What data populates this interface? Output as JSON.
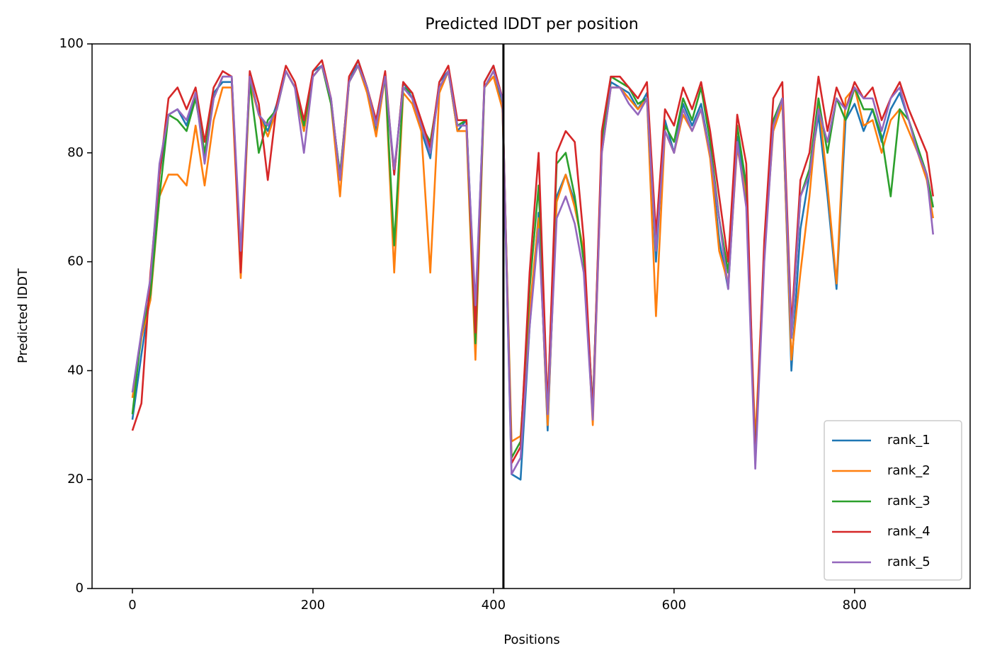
{
  "chart_data": {
    "type": "line",
    "title": "Predicted lDDT per position",
    "xlabel": "Positions",
    "ylabel": "Predicted lDDT",
    "x": [
      0,
      10,
      20,
      30,
      40,
      50,
      60,
      70,
      80,
      90,
      100,
      110,
      120,
      130,
      140,
      150,
      160,
      170,
      180,
      190,
      200,
      210,
      220,
      230,
      240,
      250,
      260,
      270,
      280,
      290,
      300,
      310,
      320,
      330,
      340,
      350,
      360,
      370,
      380,
      390,
      400,
      410,
      420,
      430,
      440,
      450,
      460,
      470,
      480,
      490,
      500,
      510,
      520,
      530,
      540,
      550,
      560,
      570,
      580,
      590,
      600,
      610,
      620,
      630,
      640,
      650,
      660,
      670,
      680,
      690,
      700,
      710,
      720,
      730,
      740,
      750,
      760,
      770,
      780,
      790,
      800,
      810,
      820,
      830,
      840,
      850,
      860,
      870,
      880,
      887
    ],
    "series": [
      {
        "name": "rank_1",
        "color": "#1f77b4",
        "values": [
          31,
          43,
          54,
          76,
          87,
          88,
          85,
          91,
          79,
          91,
          93,
          93,
          58,
          94,
          87,
          84,
          89,
          95,
          92,
          84,
          95,
          96,
          89,
          76,
          93,
          97,
          92,
          84,
          94,
          76,
          93,
          90,
          84,
          79,
          93,
          95,
          84,
          86,
          50,
          93,
          96,
          88,
          21,
          20,
          48,
          69,
          29,
          72,
          76,
          71,
          61,
          33,
          81,
          93,
          92,
          91,
          88,
          91,
          60,
          86,
          80,
          89,
          85,
          89,
          80,
          64,
          55,
          83,
          72,
          25,
          61,
          86,
          90,
          40,
          66,
          76,
          87,
          72,
          55,
          86,
          89,
          84,
          88,
          82,
          88,
          91,
          86,
          81,
          76,
          70
        ]
      },
      {
        "name": "rank_2",
        "color": "#ff7f0e",
        "values": [
          35,
          46,
          53,
          72,
          76,
          76,
          74,
          85,
          74,
          86,
          92,
          92,
          57,
          93,
          87,
          83,
          88,
          95,
          92,
          84,
          94,
          96,
          89,
          72,
          93,
          96,
          91,
          83,
          94,
          58,
          91,
          89,
          84,
          58,
          91,
          95,
          84,
          84,
          42,
          92,
          94,
          88,
          27,
          28,
          51,
          68,
          30,
          71,
          76,
          70,
          62,
          30,
          80,
          92,
          92,
          90,
          88,
          90,
          50,
          84,
          80,
          87,
          84,
          88,
          79,
          62,
          56,
          81,
          72,
          27,
          62,
          84,
          89,
          42,
          58,
          72,
          90,
          74,
          56,
          90,
          92,
          85,
          86,
          80,
          86,
          88,
          84,
          80,
          75,
          68
        ]
      },
      {
        "name": "rank_3",
        "color": "#2ca02c",
        "values": [
          32,
          47,
          54,
          72,
          87,
          86,
          84,
          90,
          80,
          90,
          94,
          94,
          60,
          93,
          80,
          86,
          88,
          95,
          92,
          85,
          94,
          96,
          89,
          76,
          93,
          96,
          92,
          85,
          94,
          63,
          92,
          91,
          85,
          82,
          92,
          95,
          85,
          86,
          45,
          92,
          95,
          90,
          24,
          27,
          55,
          74,
          33,
          78,
          80,
          72,
          60,
          33,
          82,
          94,
          93,
          92,
          89,
          90,
          62,
          85,
          82,
          90,
          86,
          92,
          82,
          68,
          58,
          85,
          74,
          24,
          61,
          86,
          90,
          46,
          72,
          77,
          90,
          80,
          90,
          86,
          92,
          88,
          88,
          83,
          72,
          88,
          86,
          81,
          76,
          70
        ]
      },
      {
        "name": "rank_4",
        "color": "#d62728",
        "values": [
          29,
          34,
          58,
          76,
          90,
          92,
          88,
          92,
          82,
          92,
          95,
          94,
          58,
          95,
          89,
          75,
          89,
          96,
          93,
          86,
          95,
          97,
          90,
          75,
          94,
          97,
          92,
          86,
          95,
          76,
          93,
          91,
          86,
          81,
          93,
          96,
          86,
          86,
          47,
          93,
          96,
          90,
          23,
          26,
          58,
          80,
          33,
          80,
          84,
          82,
          64,
          32,
          84,
          94,
          94,
          92,
          90,
          93,
          65,
          88,
          85,
          92,
          88,
          93,
          84,
          72,
          60,
          87,
          78,
          23,
          64,
          90,
          93,
          48,
          75,
          80,
          94,
          84,
          92,
          88,
          93,
          90,
          92,
          86,
          90,
          93,
          88,
          84,
          80,
          72
        ]
      },
      {
        "name": "rank_5",
        "color": "#9467bd",
        "values": [
          36,
          47,
          57,
          78,
          87,
          88,
          86,
          91,
          78,
          90,
          94,
          94,
          62,
          94,
          87,
          85,
          88,
          95,
          92,
          80,
          94,
          96,
          90,
          75,
          93,
          96,
          92,
          85,
          94,
          77,
          92,
          90,
          85,
          80,
          92,
          95,
          85,
          85,
          52,
          92,
          95,
          90,
          21,
          24,
          48,
          66,
          32,
          68,
          72,
          67,
          58,
          31,
          80,
          92,
          92,
          89,
          87,
          90,
          62,
          84,
          80,
          88,
          84,
          88,
          80,
          68,
          55,
          82,
          70,
          22,
          60,
          85,
          90,
          46,
          72,
          76,
          88,
          82,
          90,
          88,
          92,
          90,
          90,
          84,
          90,
          92,
          86,
          80,
          76,
          65
        ]
      }
    ],
    "vlines": [
      411
    ],
    "vline_color": "#000000",
    "xlim": [
      -44.7,
      928
    ],
    "ylim": [
      0,
      100
    ],
    "xticks": [
      0,
      200,
      400,
      600,
      800
    ],
    "yticks": [
      0,
      20,
      40,
      60,
      80,
      100
    ],
    "legend": "lower right",
    "grid": false
  }
}
